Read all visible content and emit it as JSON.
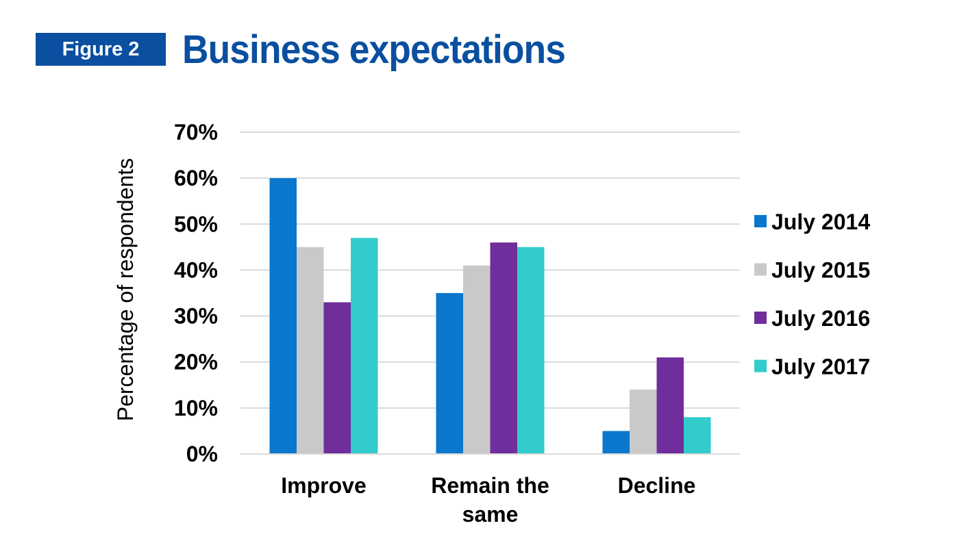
{
  "figure": {
    "badge": "Figure 2",
    "title": "Business expectations"
  },
  "colors": {
    "badge_bg": "#0a4fa0",
    "title": "#0a4fa0",
    "grid": "#d9d9d9"
  },
  "chart_data": {
    "type": "bar",
    "title": "Business expectations",
    "ylabel": "Percentage of respondents",
    "xlabel": "",
    "ylim": [
      0,
      70
    ],
    "yticks": [
      "0%",
      "10%",
      "20%",
      "30%",
      "40%",
      "50%",
      "60%",
      "70%"
    ],
    "grid": true,
    "legend_position": "right",
    "categories": [
      [
        "Improve"
      ],
      [
        "Remain the",
        "same"
      ],
      [
        "Decline"
      ]
    ],
    "series": [
      {
        "name": "July 2014",
        "color": "#0a77cc",
        "values": [
          60,
          35,
          5
        ]
      },
      {
        "name": "July 2015",
        "color": "#c9c9c9",
        "values": [
          45,
          41,
          14
        ]
      },
      {
        "name": "July 2016",
        "color": "#6f2e9b",
        "values": [
          33,
          46,
          21
        ]
      },
      {
        "name": "July 2017",
        "color": "#33cccc",
        "values": [
          47,
          45,
          8
        ]
      }
    ]
  }
}
